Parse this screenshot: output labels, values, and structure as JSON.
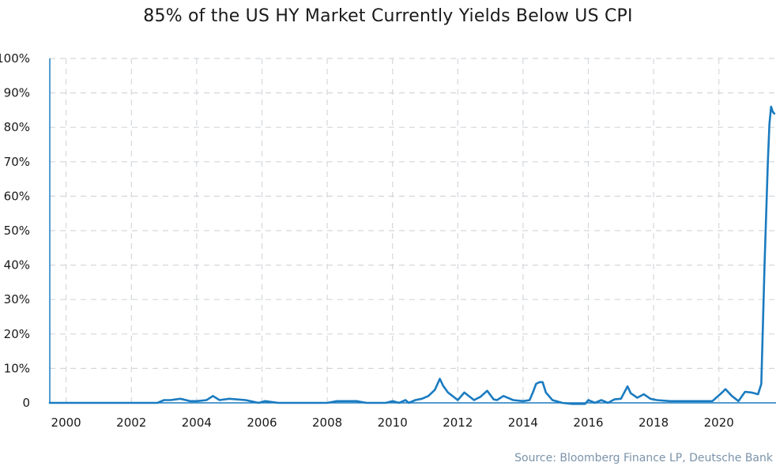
{
  "chart_data": {
    "type": "line",
    "title": "85% of the US HY Market Currently Yields Below US CPI",
    "xlabel": "",
    "ylabel": "",
    "x_tick_labels": [
      "2000",
      "2002",
      "2004",
      "2006",
      "2008",
      "2010",
      "2012",
      "2014",
      "2016",
      "2018",
      "2020"
    ],
    "y_tick_labels": [
      "0",
      "10%",
      "20%",
      "30%",
      "40%",
      "50%",
      "60%",
      "70%",
      "80%",
      "90%",
      "100%"
    ],
    "xlim": [
      1999.5,
      2021.75
    ],
    "ylim": [
      0,
      100
    ],
    "grid": true,
    "line_color": "#1a7bc0",
    "series": [
      {
        "x": [
          1999.5,
          2000,
          2001,
          2002,
          2002.8,
          2003,
          2003.2,
          2003.5,
          2003.8,
          2004,
          2004.3,
          2004.5,
          2004.7,
          2005,
          2005.5,
          2005.9,
          2006.1,
          2006.5,
          2007,
          2007.5,
          2008,
          2008.3,
          2008.6,
          2008.9,
          2009.2,
          2009.8,
          2010,
          2010.2,
          2010.4,
          2010.5,
          2010.7,
          2010.9,
          2011.1,
          2011.3,
          2011.45,
          2011.55,
          2011.7,
          2012,
          2012.2,
          2012.5,
          2012.7,
          2012.9,
          2013.1,
          2013.2,
          2013.4,
          2013.7,
          2014,
          2014.2,
          2014.3,
          2014.4,
          2014.5,
          2014.6,
          2014.7,
          2014.9,
          2015.2,
          2015.5,
          2015.9,
          2016,
          2016.2,
          2016.4,
          2016.6,
          2016.8,
          2017,
          2017.2,
          2017.3,
          2017.5,
          2017.7,
          2017.9,
          2018.1,
          2018.5,
          2019,
          2019.5,
          2019.8,
          2020.1,
          2020.2,
          2020.4,
          2020.6,
          2020.8,
          2021,
          2021.2,
          2021.3,
          2021.4,
          2021.5,
          2021.55,
          2021.6,
          2021.65,
          2021.7
        ],
        "y": [
          0,
          0,
          0,
          0,
          0,
          0.8,
          0.8,
          1.2,
          0.5,
          0.5,
          0.8,
          2,
          0.8,
          1.2,
          0.8,
          0,
          0.5,
          0,
          0,
          0,
          0,
          0.5,
          0.5,
          0.5,
          0,
          0,
          0.5,
          0,
          0.8,
          0,
          0.8,
          1.2,
          2,
          3.8,
          7,
          5,
          3,
          0.8,
          3,
          0.8,
          1.8,
          3.5,
          1,
          0.8,
          2,
          0.8,
          0.5,
          0.8,
          3,
          5.5,
          6,
          6,
          3,
          0.8,
          0,
          -0.3,
          -0.3,
          0.8,
          0,
          0.8,
          0,
          1,
          1.2,
          4.8,
          2.8,
          1.5,
          2.5,
          1.2,
          0.8,
          0.5,
          0.5,
          0.5,
          0.5,
          3,
          4,
          2,
          0.5,
          3.2,
          3,
          2.5,
          5.5,
          40,
          70,
          81,
          86,
          84.5,
          84
        ]
      }
    ]
  },
  "source": "Source: Bloomberg Finance LP, Deutsche Bank"
}
